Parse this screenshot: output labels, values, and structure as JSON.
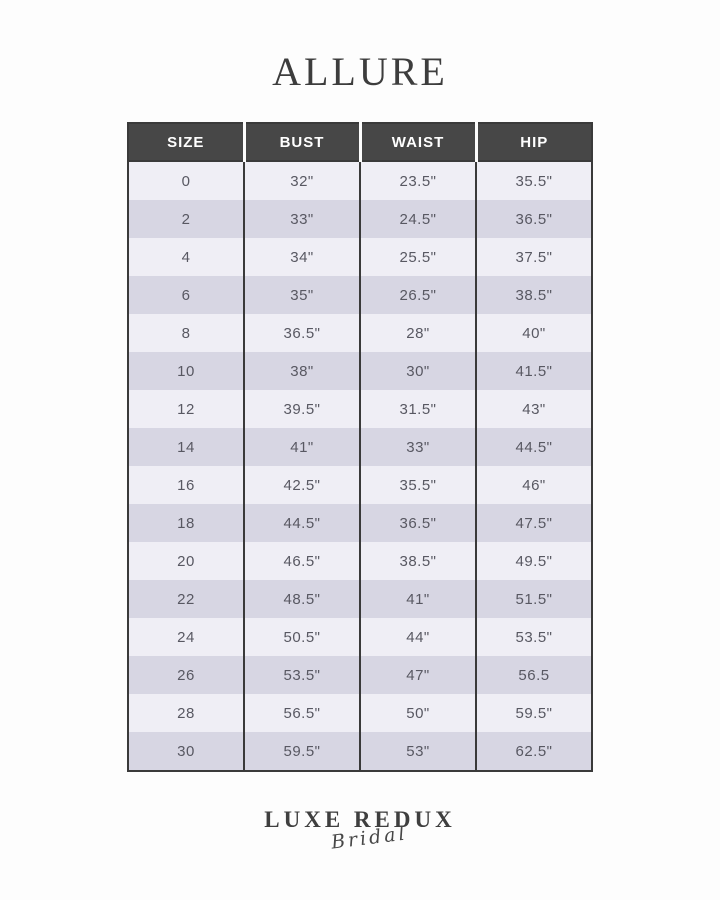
{
  "page": {
    "title": "ALLURE"
  },
  "table": {
    "headers": [
      "SIZE",
      "BUST",
      "WAIST",
      "HIP"
    ],
    "header_keys": [
      "size",
      "bust",
      "waist",
      "hip"
    ],
    "rows": [
      [
        "0",
        "32\"",
        "23.5\"",
        "35.5\""
      ],
      [
        "2",
        "33\"",
        "24.5\"",
        "36.5\""
      ],
      [
        "4",
        "34\"",
        "25.5\"",
        "37.5\""
      ],
      [
        "6",
        "35\"",
        "26.5\"",
        "38.5\""
      ],
      [
        "8",
        "36.5\"",
        "28\"",
        "40\""
      ],
      [
        "10",
        "38\"",
        "30\"",
        "41.5\""
      ],
      [
        "12",
        "39.5\"",
        "31.5\"",
        "43\""
      ],
      [
        "14",
        "41\"",
        "33\"",
        "44.5\""
      ],
      [
        "16",
        "42.5\"",
        "35.5\"",
        "46\""
      ],
      [
        "18",
        "44.5\"",
        "36.5\"",
        "47.5\""
      ],
      [
        "20",
        "46.5\"",
        "38.5\"",
        "49.5\""
      ],
      [
        "22",
        "48.5\"",
        "41\"",
        "51.5\""
      ],
      [
        "24",
        "50.5\"",
        "44\"",
        "53.5\""
      ],
      [
        "26",
        "53.5\"",
        "47\"",
        "56.5"
      ],
      [
        "28",
        "56.5\"",
        "50\"",
        "59.5\""
      ],
      [
        "30",
        "59.5\"",
        "53\"",
        "62.5\""
      ]
    ]
  },
  "footer": {
    "brand_primary": "LUXE REDUX",
    "brand_secondary": "Bridal"
  },
  "colors": {
    "page_background": "#fdfdfd",
    "header_background": "#474747",
    "header_text": "#ffffff",
    "row_light": "#efeef5",
    "row_dark": "#d7d6e3",
    "table_border": "#3a3a3a",
    "body_text": "#585862",
    "title_text": "#3d3d3d",
    "brand_text": "#3f3f3f"
  }
}
